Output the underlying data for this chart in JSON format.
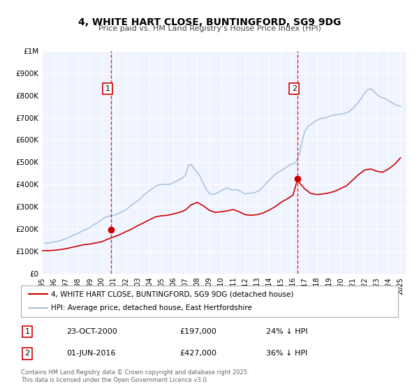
{
  "title": "4, WHITE HART CLOSE, BUNTINGFORD, SG9 9DG",
  "subtitle": "Price paid vs. HM Land Registry's House Price Index (HPI)",
  "xlabel": "",
  "ylabel": "",
  "background_color": "#ffffff",
  "plot_bg_color": "#f0f4ff",
  "grid_color": "#ffffff",
  "hpi_color": "#aac4e0",
  "price_color": "#cc0000",
  "ylim": [
    0,
    1000000
  ],
  "yticks": [
    0,
    100000,
    200000,
    300000,
    400000,
    500000,
    600000,
    700000,
    800000,
    900000,
    1000000
  ],
  "ytick_labels": [
    "£0",
    "£100K",
    "£200K",
    "£300K",
    "£400K",
    "£500K",
    "£600K",
    "£700K",
    "£800K",
    "£900K",
    "£1M"
  ],
  "xmin_year": 1995,
  "xmax_year": 2025.5,
  "xtick_years": [
    1995,
    1996,
    1997,
    1998,
    1999,
    2000,
    2001,
    2002,
    2003,
    2004,
    2005,
    2006,
    2007,
    2008,
    2009,
    2010,
    2011,
    2012,
    2013,
    2014,
    2015,
    2016,
    2017,
    2018,
    2019,
    2020,
    2021,
    2022,
    2023,
    2024,
    2025
  ],
  "sale1_x": 2000.81,
  "sale1_y": 197000,
  "sale1_label": "1",
  "sale1_date": "23-OCT-2000",
  "sale1_price": "£197,000",
  "sale1_hpi": "24% ↓ HPI",
  "sale2_x": 2016.41,
  "sale2_y": 427000,
  "sale2_label": "2",
  "sale2_date": "01-JUN-2016",
  "sale2_price": "£427,000",
  "sale2_hpi": "36% ↓ HPI",
  "legend_label_price": "4, WHITE HART CLOSE, BUNTINGFORD, SG9 9DG (detached house)",
  "legend_label_hpi": "HPI: Average price, detached house, East Hertfordshire",
  "footnote": "Contains HM Land Registry data © Crown copyright and database right 2025.\nThis data is licensed under the Open Government Licence v3.0.",
  "hpi_data": {
    "years": [
      1995.25,
      1995.5,
      1995.75,
      1996.0,
      1996.25,
      1996.5,
      1996.75,
      1997.0,
      1997.25,
      1997.5,
      1997.75,
      1998.0,
      1998.25,
      1998.5,
      1998.75,
      1999.0,
      1999.25,
      1999.5,
      1999.75,
      2000.0,
      2000.25,
      2000.5,
      2000.75,
      2001.0,
      2001.25,
      2001.5,
      2001.75,
      2002.0,
      2002.25,
      2002.5,
      2002.75,
      2003.0,
      2003.25,
      2003.5,
      2003.75,
      2004.0,
      2004.25,
      2004.5,
      2004.75,
      2005.0,
      2005.25,
      2005.5,
      2005.75,
      2006.0,
      2006.25,
      2006.5,
      2006.75,
      2007.0,
      2007.25,
      2007.5,
      2007.75,
      2008.0,
      2008.25,
      2008.5,
      2008.75,
      2009.0,
      2009.25,
      2009.5,
      2009.75,
      2010.0,
      2010.25,
      2010.5,
      2010.75,
      2011.0,
      2011.25,
      2011.5,
      2011.75,
      2012.0,
      2012.25,
      2012.5,
      2012.75,
      2013.0,
      2013.25,
      2013.5,
      2013.75,
      2014.0,
      2014.25,
      2014.5,
      2014.75,
      2015.0,
      2015.25,
      2015.5,
      2015.75,
      2016.0,
      2016.25,
      2016.5,
      2016.75,
      2017.0,
      2017.25,
      2017.5,
      2017.75,
      2018.0,
      2018.25,
      2018.5,
      2018.75,
      2019.0,
      2019.25,
      2019.5,
      2019.75,
      2020.0,
      2020.25,
      2020.5,
      2020.75,
      2021.0,
      2021.25,
      2021.5,
      2021.75,
      2022.0,
      2022.25,
      2022.5,
      2022.75,
      2023.0,
      2023.25,
      2023.5,
      2023.75,
      2024.0,
      2024.25,
      2024.5,
      2024.75,
      2025.0
    ],
    "values": [
      138000,
      138500,
      139000,
      142000,
      145000,
      148000,
      152000,
      157000,
      163000,
      170000,
      175000,
      180000,
      188000,
      195000,
      200000,
      207000,
      216000,
      224000,
      233000,
      242000,
      252000,
      256000,
      260000,
      262000,
      267000,
      272000,
      278000,
      286000,
      296000,
      308000,
      318000,
      326000,
      338000,
      352000,
      362000,
      372000,
      382000,
      392000,
      398000,
      400000,
      402000,
      400000,
      402000,
      408000,
      415000,
      422000,
      430000,
      440000,
      485000,
      490000,
      470000,
      455000,
      435000,
      405000,
      380000,
      360000,
      355000,
      358000,
      365000,
      372000,
      380000,
      385000,
      378000,
      375000,
      378000,
      373000,
      365000,
      358000,
      360000,
      362000,
      363000,
      368000,
      375000,
      390000,
      405000,
      418000,
      432000,
      445000,
      455000,
      462000,
      470000,
      480000,
      488000,
      492000,
      500000,
      530000,
      590000,
      640000,
      660000,
      670000,
      680000,
      688000,
      695000,
      698000,
      700000,
      705000,
      710000,
      712000,
      714000,
      716000,
      718000,
      722000,
      730000,
      740000,
      755000,
      770000,
      790000,
      810000,
      825000,
      830000,
      820000,
      805000,
      795000,
      790000,
      785000,
      775000,
      770000,
      760000,
      755000,
      750000
    ]
  },
  "price_data": {
    "years": [
      1995.0,
      1995.5,
      1996.0,
      1996.5,
      1997.0,
      1997.5,
      1998.0,
      1998.5,
      1999.0,
      1999.5,
      2000.0,
      2000.5,
      2000.75,
      2001.0,
      2001.5,
      2002.0,
      2002.5,
      2003.0,
      2003.5,
      2004.0,
      2004.5,
      2005.0,
      2005.5,
      2006.0,
      2006.5,
      2007.0,
      2007.5,
      2008.0,
      2008.5,
      2009.0,
      2009.5,
      2010.0,
      2010.5,
      2011.0,
      2011.5,
      2012.0,
      2012.5,
      2013.0,
      2013.5,
      2014.0,
      2014.5,
      2015.0,
      2015.5,
      2016.0,
      2016.41,
      2016.5,
      2017.0,
      2017.5,
      2018.0,
      2018.5,
      2019.0,
      2019.5,
      2020.0,
      2020.5,
      2021.0,
      2021.5,
      2022.0,
      2022.5,
      2023.0,
      2023.5,
      2024.0,
      2024.5,
      2025.0
    ],
    "values": [
      103000,
      103000,
      105000,
      108000,
      112000,
      118000,
      124000,
      130000,
      133000,
      138000,
      143000,
      155000,
      160000,
      165000,
      175000,
      188000,
      200000,
      215000,
      228000,
      242000,
      255000,
      260000,
      262000,
      268000,
      275000,
      285000,
      310000,
      320000,
      305000,
      285000,
      275000,
      278000,
      282000,
      288000,
      278000,
      265000,
      262000,
      265000,
      272000,
      285000,
      300000,
      320000,
      335000,
      352000,
      427000,
      410000,
      380000,
      360000,
      355000,
      358000,
      362000,
      370000,
      382000,
      395000,
      420000,
      445000,
      465000,
      470000,
      460000,
      455000,
      470000,
      490000,
      520000
    ]
  }
}
